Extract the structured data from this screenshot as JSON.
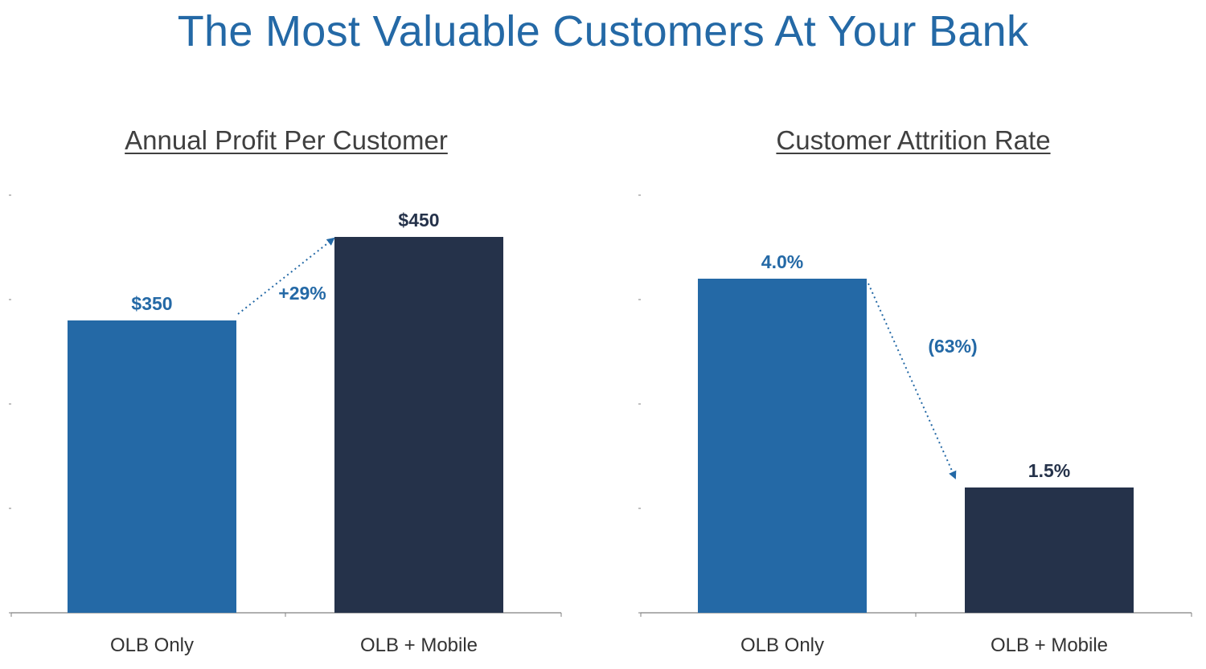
{
  "page": {
    "title": "The Most Valuable Customers At Your Bank"
  },
  "colors": {
    "accent": "#2469a6",
    "dark": "#25324a",
    "text": "#333333",
    "axis": "#808080"
  },
  "chart_data": [
    {
      "type": "bar",
      "title": "Annual Profit Per Customer",
      "categories": [
        "OLB Only",
        "OLB + Mobile"
      ],
      "values": [
        350,
        450
      ],
      "value_labels": [
        "$350",
        "$450"
      ],
      "bar_colors": [
        "#2469a6",
        "#25324a"
      ],
      "label_colors": [
        "#2469a6",
        "#25324a"
      ],
      "ylim": [
        0,
        500
      ],
      "grid": false,
      "change_label": "+29%"
    },
    {
      "type": "bar",
      "title": "Customer Attrition Rate",
      "categories": [
        "OLB Only",
        "OLB + Mobile"
      ],
      "values": [
        4.0,
        1.5
      ],
      "value_labels": [
        "4.0%",
        "1.5%"
      ],
      "bar_colors": [
        "#2469a6",
        "#25324a"
      ],
      "label_colors": [
        "#2469a6",
        "#25324a"
      ],
      "ylim": [
        0,
        5
      ],
      "grid": false,
      "change_label": "(63%)"
    }
  ]
}
